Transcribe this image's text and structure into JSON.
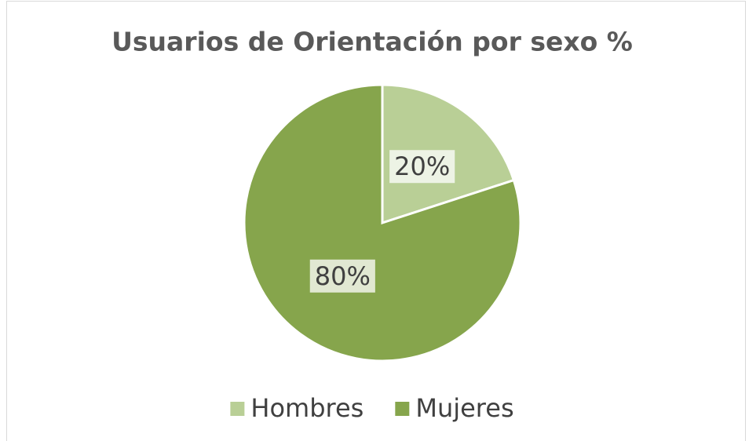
{
  "chart_data": {
    "type": "pie",
    "title": "Usuarios de Orientación por sexo %",
    "categories": [
      "Hombres",
      "Mujeres"
    ],
    "values": [
      20,
      80
    ],
    "value_labels": [
      "20%",
      "80%"
    ],
    "colors": [
      "#b9cf96",
      "#86a54c"
    ],
    "legend": "bottom"
  }
}
